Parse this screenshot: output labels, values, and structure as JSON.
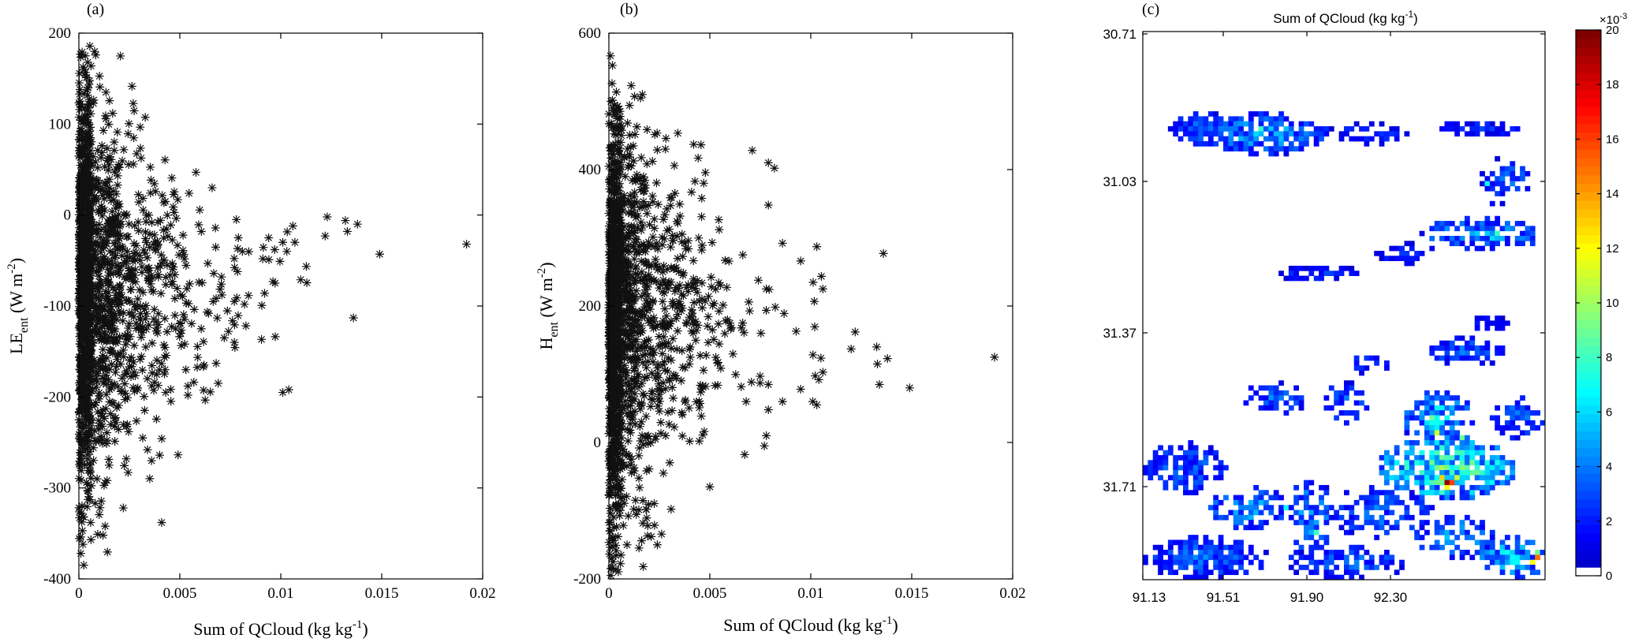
{
  "chart_data": [
    {
      "type": "scatter",
      "panel": "(a)",
      "xlabel": "Sum of QCloud (kg kg",
      "xlabel_sup": "-1",
      "xlabel_end": ")",
      "ylabel_main": "LE",
      "ylabel_sub": "ent",
      "ylabel_unit": " (W m",
      "ylabel_sup": "-2",
      "ylabel_end": ")",
      "xlim": [
        0,
        0.02
      ],
      "ylim": [
        -400,
        200
      ],
      "xticks": [
        0,
        0.005,
        0.01,
        0.015,
        0.02
      ],
      "xtick_labels": [
        "0",
        "0.005",
        "0.01",
        "0.015",
        "0.02"
      ],
      "yticks": [
        -400,
        -300,
        -200,
        -100,
        0,
        100,
        200
      ],
      "ytick_labels": [
        "-400",
        "-300",
        "-200",
        "-100",
        "0",
        "100",
        "200"
      ],
      "marker": "asterisk",
      "cloud": {
        "n": 1700,
        "y_center": -80,
        "y_spread": 110,
        "x_decay": 0.0018,
        "seed": 11
      },
      "points": [
        {
          "x": 0.0003,
          "y": 118
        },
        {
          "x": 0.0001,
          "y": 95
        },
        {
          "x": 0.0002,
          "y": 65
        },
        {
          "x": 0.0011,
          "y": 63
        },
        {
          "x": 0.0014,
          "y": 60
        },
        {
          "x": 0.0058,
          "y": 47
        },
        {
          "x": 0.0066,
          "y": 30
        },
        {
          "x": 0.0049,
          "y": 17
        },
        {
          "x": 0.0038,
          "y": 26
        },
        {
          "x": 0.0078,
          "y": -5
        },
        {
          "x": 0.0079,
          "y": -25
        },
        {
          "x": 0.0081,
          "y": -40
        },
        {
          "x": 0.0094,
          "y": -25
        },
        {
          "x": 0.0097,
          "y": -38
        },
        {
          "x": 0.0101,
          "y": -30
        },
        {
          "x": 0.0103,
          "y": -40
        },
        {
          "x": 0.0106,
          "y": -12
        },
        {
          "x": 0.0107,
          "y": -30
        },
        {
          "x": 0.0122,
          "y": -23
        },
        {
          "x": 0.0123,
          "y": -2
        },
        {
          "x": 0.0132,
          "y": -6
        },
        {
          "x": 0.0133,
          "y": -18
        },
        {
          "x": 0.0138,
          "y": -10
        },
        {
          "x": 0.0149,
          "y": -43
        },
        {
          "x": 0.0192,
          "y": -32
        },
        {
          "x": 0.0136,
          "y": -113
        },
        {
          "x": 0.0092,
          "y": -86
        },
        {
          "x": 0.0077,
          "y": -95
        },
        {
          "x": 0.0082,
          "y": -98
        },
        {
          "x": 0.0077,
          "y": -140
        },
        {
          "x": 0.0072,
          "y": -135
        },
        {
          "x": 0.0068,
          "y": -163
        },
        {
          "x": 0.0069,
          "y": -185
        },
        {
          "x": 0.0062,
          "y": -165
        },
        {
          "x": 0.0053,
          "y": -170
        },
        {
          "x": 0.0054,
          "y": -188
        },
        {
          "x": 0.0054,
          "y": -198
        },
        {
          "x": 0.0101,
          "y": -195
        },
        {
          "x": 0.0104,
          "y": -192
        },
        {
          "x": 0.0043,
          "y": -195
        },
        {
          "x": 0.004,
          "y": -264
        },
        {
          "x": 0.0034,
          "y": -258
        },
        {
          "x": 0.0036,
          "y": -270
        },
        {
          "x": 0.0022,
          "y": -322
        },
        {
          "x": 0.0041,
          "y": -338
        },
        {
          "x": 0.0013,
          "y": -342
        },
        {
          "x": 0.0012,
          "y": -352
        },
        {
          "x": 0.0006,
          "y": -357
        },
        {
          "x": 0.0001,
          "y": -372
        },
        {
          "x": 0.0002,
          "y": -362
        },
        {
          "x": 0.0009,
          "y": -290
        },
        {
          "x": 0.0015,
          "y": -275
        }
      ]
    },
    {
      "type": "scatter",
      "panel": "(b)",
      "xlabel": "Sum of QCloud (kg kg",
      "xlabel_sup": "-1",
      "xlabel_end": ")",
      "ylabel_main": "H",
      "ylabel_sub": "ent",
      "ylabel_unit": " (W m",
      "ylabel_sup": "-2",
      "ylabel_end": ")",
      "xlim": [
        0,
        0.02
      ],
      "ylim": [
        -200,
        600
      ],
      "xticks": [
        0,
        0.005,
        0.01,
        0.015,
        0.02
      ],
      "xtick_labels": [
        "0",
        "0.005",
        "0.01",
        "0.015",
        "0.02"
      ],
      "yticks": [
        -200,
        0,
        200,
        400,
        600
      ],
      "ytick_labels": [
        "-200",
        "0",
        "200",
        "400",
        "600"
      ],
      "marker": "asterisk",
      "cloud": {
        "n": 1700,
        "y_center": 180,
        "y_spread": 150,
        "x_decay": 0.0018,
        "seed": 23
      },
      "points": [
        {
          "x": 0.0001,
          "y": 500
        },
        {
          "x": 0.0002,
          "y": 490
        },
        {
          "x": 0.0003,
          "y": 480
        },
        {
          "x": 0.0071,
          "y": 428
        },
        {
          "x": 0.0079,
          "y": 410
        },
        {
          "x": 0.0082,
          "y": 402
        },
        {
          "x": 0.0079,
          "y": 348
        },
        {
          "x": 0.0042,
          "y": 437
        },
        {
          "x": 0.0028,
          "y": 430
        },
        {
          "x": 0.0047,
          "y": 380
        },
        {
          "x": 0.0086,
          "y": 292
        },
        {
          "x": 0.0103,
          "y": 287
        },
        {
          "x": 0.0095,
          "y": 266
        },
        {
          "x": 0.0106,
          "y": 225
        },
        {
          "x": 0.0136,
          "y": 277
        },
        {
          "x": 0.0078,
          "y": 225
        },
        {
          "x": 0.0122,
          "y": 162
        },
        {
          "x": 0.012,
          "y": 137
        },
        {
          "x": 0.0133,
          "y": 115
        },
        {
          "x": 0.0138,
          "y": 123
        },
        {
          "x": 0.0191,
          "y": 125
        },
        {
          "x": 0.0149,
          "y": 80
        },
        {
          "x": 0.0134,
          "y": 85
        },
        {
          "x": 0.0106,
          "y": 103
        },
        {
          "x": 0.0104,
          "y": 92
        },
        {
          "x": 0.0101,
          "y": 60
        },
        {
          "x": 0.0103,
          "y": 55
        },
        {
          "x": 0.0095,
          "y": 78
        },
        {
          "x": 0.0086,
          "y": 60
        },
        {
          "x": 0.0079,
          "y": 85
        },
        {
          "x": 0.0079,
          "y": 48
        },
        {
          "x": 0.0078,
          "y": 10
        },
        {
          "x": 0.0077,
          "y": -5
        },
        {
          "x": 0.0068,
          "y": 60
        },
        {
          "x": 0.005,
          "y": -65
        },
        {
          "x": 0.0027,
          "y": -45
        },
        {
          "x": 0.0021,
          "y": -138
        },
        {
          "x": 0.0024,
          "y": -150
        },
        {
          "x": 0.0017,
          "y": -182
        },
        {
          "x": 0.0009,
          "y": -150
        },
        {
          "x": 0.0006,
          "y": -165
        },
        {
          "x": 0.0001,
          "y": -185
        },
        {
          "x": 0.0002,
          "y": -175
        },
        {
          "x": 0.0001,
          "y": -195
        }
      ]
    },
    {
      "type": "heatmap",
      "panel": "(c)",
      "title": "Sum of QCloud (kg kg",
      "title_sup": "-1",
      "title_end": ")",
      "x_tick_labels": [
        "91.13",
        "91.51",
        "91.90",
        "92.30"
      ],
      "y_tick_labels": [
        "30.71",
        "31.03",
        "31.37",
        "31.71"
      ],
      "colorbar": {
        "min": 0,
        "max": 0.02,
        "tick_labels": [
          "0",
          "2",
          "4",
          "6",
          "8",
          "10",
          "12",
          "14",
          "16",
          "18",
          "20"
        ],
        "multiplier_base": "×10",
        "multiplier_exp": "-3"
      },
      "colormap": "jet",
      "grid": {
        "cols": 80,
        "rows": 110,
        "seed": 7
      },
      "patches": [
        {
          "cx": 12,
          "cy": 19,
          "rx": 7,
          "ry": 3,
          "d": 0.9,
          "v": 0.003
        },
        {
          "cx": 24,
          "cy": 20,
          "rx": 12,
          "ry": 4,
          "d": 0.75,
          "v": 0.004
        },
        {
          "cx": 45,
          "cy": 20,
          "rx": 9,
          "ry": 2,
          "d": 0.6,
          "v": 0.002
        },
        {
          "cx": 67,
          "cy": 19,
          "rx": 9,
          "ry": 1.5,
          "d": 0.8,
          "v": 0.002
        },
        {
          "cx": 72,
          "cy": 29,
          "rx": 5,
          "ry": 3,
          "d": 0.5,
          "v": 0.003
        },
        {
          "cx": 67,
          "cy": 40,
          "rx": 12,
          "ry": 3,
          "d": 0.7,
          "v": 0.004
        },
        {
          "cx": 35,
          "cy": 48,
          "rx": 9,
          "ry": 1.5,
          "d": 0.6,
          "v": 0.002
        },
        {
          "cx": 52,
          "cy": 44,
          "rx": 6,
          "ry": 2,
          "d": 0.6,
          "v": 0.002
        },
        {
          "cx": 64,
          "cy": 64,
          "rx": 7,
          "ry": 3,
          "d": 0.6,
          "v": 0.003
        },
        {
          "cx": 44,
          "cy": 66,
          "rx": 5,
          "ry": 2,
          "d": 0.5,
          "v": 0.002
        },
        {
          "cx": 58,
          "cy": 77,
          "rx": 7,
          "ry": 5,
          "d": 0.75,
          "v": 0.005
        },
        {
          "cx": 40,
          "cy": 74,
          "rx": 5,
          "ry": 4,
          "d": 0.5,
          "v": 0.003
        },
        {
          "cx": 26,
          "cy": 73,
          "rx": 6,
          "ry": 3,
          "d": 0.5,
          "v": 0.003
        },
        {
          "cx": 74,
          "cy": 77,
          "rx": 5,
          "ry": 4,
          "d": 0.55,
          "v": 0.003
        },
        {
          "cx": 60,
          "cy": 87,
          "rx": 13,
          "ry": 6,
          "d": 0.8,
          "v": 0.007
        },
        {
          "cx": 8,
          "cy": 87,
          "rx": 8,
          "ry": 5,
          "d": 0.7,
          "v": 0.003
        },
        {
          "cx": 20,
          "cy": 95,
          "rx": 8,
          "ry": 4,
          "d": 0.6,
          "v": 0.004
        },
        {
          "cx": 33,
          "cy": 97,
          "rx": 4,
          "ry": 8,
          "d": 0.6,
          "v": 0.004
        },
        {
          "cx": 47,
          "cy": 96,
          "rx": 10,
          "ry": 5,
          "d": 0.6,
          "v": 0.003
        },
        {
          "cx": 62,
          "cy": 101,
          "rx": 8,
          "ry": 4,
          "d": 0.6,
          "v": 0.004
        },
        {
          "cx": 12,
          "cy": 105,
          "rx": 12,
          "ry": 4,
          "d": 0.8,
          "v": 0.003
        },
        {
          "cx": 40,
          "cy": 106,
          "rx": 12,
          "ry": 3,
          "d": 0.7,
          "v": 0.003
        },
        {
          "cx": 73,
          "cy": 105,
          "rx": 7,
          "ry": 4,
          "d": 0.7,
          "v": 0.005
        },
        {
          "cx": 68,
          "cy": 58,
          "rx": 4,
          "ry": 1.5,
          "d": 0.7,
          "v": 0.002
        },
        {
          "cx": 70,
          "cy": 30,
          "rx": 2,
          "ry": 5,
          "d": 0.4,
          "v": 0.002
        }
      ],
      "hotspots": [
        {
          "c": 60,
          "r": 90,
          "v": 0.0195
        },
        {
          "c": 61,
          "r": 90,
          "v": 0.016
        },
        {
          "c": 59,
          "r": 89,
          "v": 0.013
        },
        {
          "c": 60,
          "r": 91,
          "v": 0.012
        },
        {
          "c": 62,
          "r": 89,
          "v": 0.011
        },
        {
          "c": 58,
          "r": 90,
          "v": 0.009
        },
        {
          "c": 61,
          "r": 88,
          "v": 0.008
        },
        {
          "c": 59,
          "r": 92,
          "v": 0.008
        },
        {
          "c": 78,
          "r": 105,
          "v": 0.015
        },
        {
          "c": 77,
          "r": 106,
          "v": 0.012
        },
        {
          "c": 78,
          "r": 104,
          "v": 0.009
        },
        {
          "c": 57,
          "r": 77,
          "v": 0.009
        },
        {
          "c": 58,
          "r": 78,
          "v": 0.007
        },
        {
          "c": 58,
          "r": 80,
          "v": 0.011
        },
        {
          "c": 63,
          "r": 81,
          "v": 0.009
        },
        {
          "c": 70,
          "r": 40,
          "v": 0.008
        },
        {
          "c": 69,
          "r": 41,
          "v": 0.006
        },
        {
          "c": 23,
          "r": 19,
          "v": 0.008
        },
        {
          "c": 22,
          "r": 20,
          "v": 0.006
        },
        {
          "c": 68,
          "r": 30,
          "v": 0.007
        },
        {
          "c": 28,
          "r": 95,
          "v": 0.007
        },
        {
          "c": 34,
          "r": 100,
          "v": 0.008
        },
        {
          "c": 54,
          "r": 90,
          "v": 0.006
        },
        {
          "c": 66,
          "r": 86,
          "v": 0.006
        }
      ]
    }
  ]
}
